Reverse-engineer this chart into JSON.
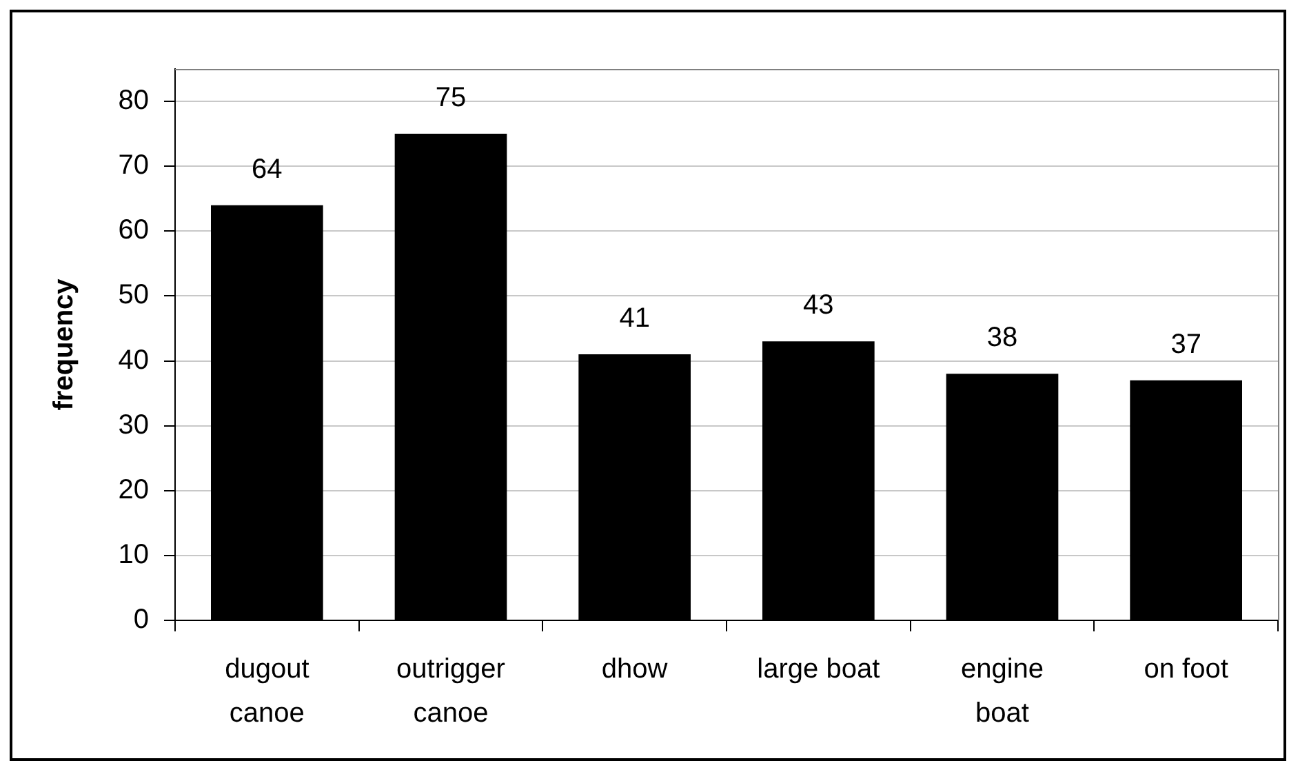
{
  "chart_data": {
    "type": "bar",
    "ylabel": "frequency",
    "categories": [
      "dugout canoe",
      "outrigger canoe",
      "dhow",
      "large boat",
      "engine boat",
      "on foot"
    ],
    "values": [
      64,
      75,
      41,
      43,
      38,
      37
    ],
    "color": "#000000",
    "ylim": [
      0,
      85
    ],
    "yticks": [
      0,
      10,
      20,
      30,
      40,
      50,
      60,
      70,
      80
    ],
    "grid": "y",
    "data_labels": true,
    "legend": false
  }
}
